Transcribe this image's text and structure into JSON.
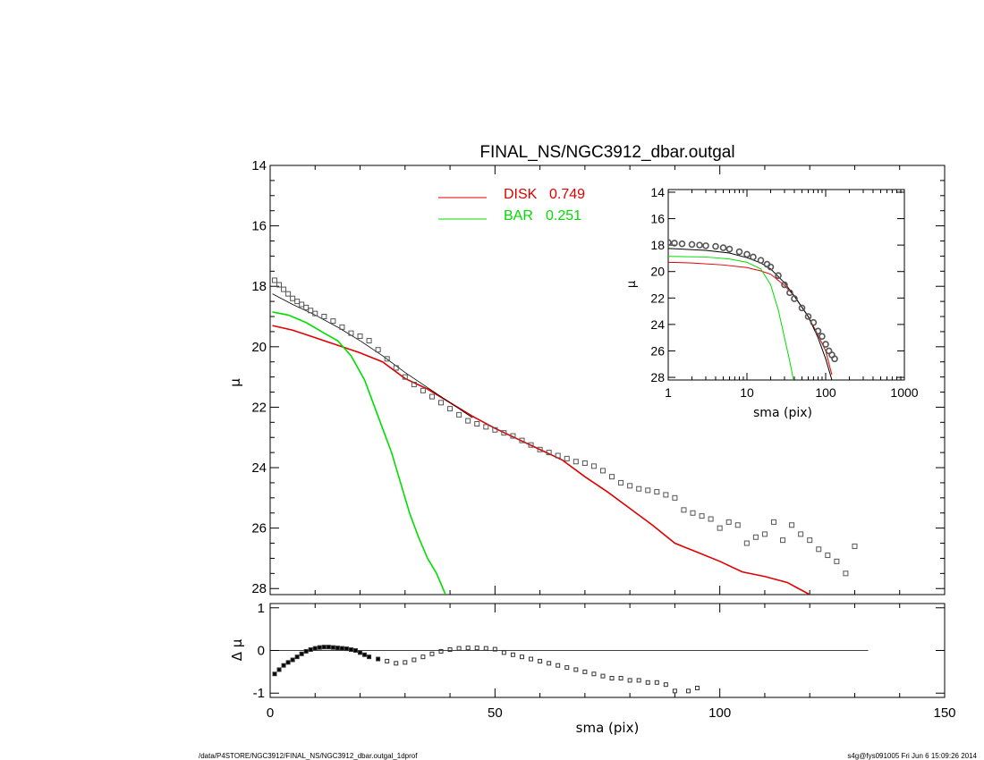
{
  "figure": {
    "title": "FINAL_NS/NGC3912_dbar.outgal",
    "footer_left": "/data/P4STORE/NGC3912/FINAL_NS/NGC3912_dbar.outgal_1dprof",
    "footer_right": "s4g@fys091005  Fri Jun  6 15:09:26 2014"
  },
  "colors": {
    "disk": "#e00000",
    "bar": "#00dd00",
    "model": "#000000",
    "data": "#555555"
  },
  "chart_data": [
    {
      "id": "main",
      "type": "line",
      "title": "FINAL_NS/NGC3912_dbar.outgal",
      "xlabel": "sma (pix)",
      "ylabel": "μ",
      "xlim": [
        0,
        150
      ],
      "ylim": [
        28.2,
        14
      ],
      "yticks": [
        14,
        16,
        18,
        20,
        22,
        24,
        26,
        28
      ],
      "yticklabels": [
        "14",
        "16",
        "18",
        "20",
        "22",
        "24",
        "26",
        "28"
      ],
      "legend": [
        {
          "label": "DISK",
          "value": "0.749",
          "color": "#e00000"
        },
        {
          "label": "BAR",
          "value": "0.251",
          "color": "#00dd00"
        }
      ],
      "series": [
        {
          "name": "DISK",
          "kind": "line",
          "color": "#e00000",
          "x": [
            0.5,
            5,
            10,
            15,
            20,
            25,
            30,
            35,
            40,
            45,
            50,
            55,
            60,
            65,
            70,
            75,
            80,
            85,
            90,
            95,
            100,
            105,
            110,
            115,
            120
          ],
          "y": [
            19.3,
            19.45,
            19.7,
            19.95,
            20.2,
            20.5,
            21.05,
            21.4,
            21.85,
            22.3,
            22.7,
            23.05,
            23.4,
            23.75,
            24.3,
            24.8,
            25.35,
            25.9,
            26.5,
            26.8,
            27.1,
            27.45,
            27.6,
            27.8,
            28.2
          ]
        },
        {
          "name": "BAR",
          "kind": "line",
          "color": "#00dd00",
          "x": [
            0.5,
            4,
            8,
            12,
            15,
            18,
            21,
            24,
            27,
            29,
            31,
            33,
            35,
            37,
            39
          ],
          "y": [
            18.85,
            18.95,
            19.2,
            19.55,
            19.8,
            20.3,
            21.1,
            22.3,
            23.5,
            24.5,
            25.5,
            26.3,
            27.0,
            27.5,
            28.2
          ]
        },
        {
          "name": "Total model",
          "kind": "line",
          "color": "#000000",
          "x": [
            0.5,
            5,
            10,
            15,
            20,
            25,
            30,
            35,
            40,
            45
          ],
          "y": [
            18.25,
            18.6,
            18.95,
            19.35,
            19.8,
            20.3,
            20.85,
            21.35,
            21.85,
            22.35
          ]
        },
        {
          "name": "Data",
          "kind": "scatter",
          "color": "#555555",
          "x": [
            1,
            2,
            3,
            4,
            5,
            6,
            7,
            8,
            9,
            10,
            12,
            14,
            16,
            18,
            20,
            22,
            24,
            26,
            28,
            30,
            32,
            34,
            36,
            38,
            40,
            42,
            44,
            46,
            48,
            50,
            52,
            54,
            56,
            58,
            60,
            62,
            64,
            66,
            68,
            70,
            72,
            74,
            76,
            78,
            80,
            82,
            84,
            86,
            88,
            90,
            92,
            94,
            96,
            98,
            100,
            102,
            104,
            106,
            108,
            110,
            112,
            114,
            116,
            118,
            120,
            122,
            124,
            126,
            128,
            130
          ],
          "y": [
            17.8,
            17.95,
            18.1,
            18.25,
            18.4,
            18.5,
            18.6,
            18.7,
            18.8,
            18.9,
            19.0,
            19.15,
            19.35,
            19.55,
            19.65,
            19.8,
            20.1,
            20.4,
            20.7,
            21.0,
            21.25,
            21.45,
            21.65,
            21.85,
            22.05,
            22.25,
            22.45,
            22.55,
            22.65,
            22.75,
            22.85,
            22.95,
            23.1,
            23.25,
            23.4,
            23.5,
            23.6,
            23.7,
            23.8,
            23.85,
            23.95,
            24.1,
            24.3,
            24.5,
            24.6,
            24.7,
            24.75,
            24.8,
            24.9,
            25.0,
            25.4,
            25.5,
            25.6,
            25.7,
            26.0,
            25.8,
            25.9,
            26.5,
            26.3,
            26.2,
            25.8,
            26.4,
            25.9,
            26.2,
            26.4,
            26.7,
            26.9,
            27.1,
            27.5,
            26.6
          ]
        }
      ]
    },
    {
      "id": "residual",
      "type": "scatter",
      "xlabel": "sma (pix)",
      "ylabel": "Δ μ",
      "xlim": [
        0,
        150
      ],
      "ylim": [
        -1.1,
        1.1
      ],
      "xticks": [
        0,
        50,
        100,
        150
      ],
      "xticklabels": [
        "0",
        "50",
        "100",
        "150"
      ],
      "yticks": [
        -1,
        0,
        1
      ],
      "yticklabels": [
        "-1",
        "0",
        "1"
      ],
      "zero_line_xrange": [
        0,
        133
      ],
      "series": [
        {
          "name": "Residual",
          "color": "#000000",
          "x": [
            1,
            2,
            3,
            4,
            5,
            6,
            7,
            8,
            9,
            10,
            11,
            12,
            13,
            14,
            15,
            16,
            17,
            18,
            19,
            20,
            21,
            22,
            24,
            26,
            28,
            30,
            32,
            34,
            36,
            38,
            40,
            42,
            44,
            46,
            48,
            50,
            52,
            54,
            56,
            58,
            60,
            62,
            64,
            66,
            68,
            70,
            72,
            74,
            76,
            78,
            80,
            82,
            84,
            86,
            88,
            90,
            93,
            95
          ],
          "y": [
            -0.55,
            -0.45,
            -0.35,
            -0.28,
            -0.22,
            -0.15,
            -0.08,
            -0.02,
            0.02,
            0.05,
            0.07,
            0.08,
            0.08,
            0.07,
            0.06,
            0.05,
            0.04,
            0.02,
            0.0,
            -0.05,
            -0.1,
            -0.15,
            -0.2,
            -0.25,
            -0.3,
            -0.28,
            -0.22,
            -0.15,
            -0.08,
            -0.02,
            0.02,
            0.05,
            0.06,
            0.06,
            0.05,
            0.03,
            -0.05,
            -0.1,
            -0.15,
            -0.2,
            -0.25,
            -0.3,
            -0.35,
            -0.4,
            -0.45,
            -0.5,
            -0.55,
            -0.6,
            -0.65,
            -0.65,
            -0.7,
            -0.7,
            -0.75,
            -0.75,
            -0.8,
            -0.95,
            -0.95,
            -0.88
          ]
        }
      ]
    },
    {
      "id": "inset",
      "type": "line",
      "xlabel": "sma (pix)",
      "ylabel": "μ",
      "xscale": "log",
      "xlim": [
        1,
        1000
      ],
      "ylim": [
        28.2,
        13.8
      ],
      "xticks": [
        1,
        10,
        100,
        1000
      ],
      "xticklabels": [
        "1",
        "10",
        "100",
        "1000"
      ],
      "yticks": [
        14,
        16,
        18,
        20,
        22,
        24,
        26,
        28
      ],
      "yticklabels": [
        "14",
        "16",
        "18",
        "20",
        "22",
        "24",
        "26",
        "28"
      ],
      "series": [
        {
          "name": "DISK",
          "kind": "line",
          "color": "#e00000",
          "x": [
            1,
            2,
            5,
            10,
            15,
            20,
            30,
            40,
            60,
            80,
            100,
            120
          ],
          "y": [
            19.3,
            19.35,
            19.5,
            19.7,
            19.95,
            20.2,
            21.05,
            21.85,
            23.4,
            24.8,
            26.0,
            27.8
          ]
        },
        {
          "name": "BAR",
          "kind": "line",
          "color": "#00dd00",
          "x": [
            1,
            3,
            6,
            10,
            15,
            20,
            25,
            30,
            35,
            39
          ],
          "y": [
            18.85,
            18.9,
            19.05,
            19.3,
            19.8,
            21.0,
            22.9,
            25.0,
            26.8,
            28.2
          ]
        },
        {
          "name": "Total model",
          "kind": "line",
          "color": "#000000",
          "x": [
            1,
            3,
            6,
            10,
            15,
            20,
            30,
            40,
            60,
            80,
            100,
            120
          ],
          "y": [
            18.25,
            18.4,
            18.6,
            18.95,
            19.35,
            19.8,
            20.85,
            21.85,
            23.4,
            25.0,
            26.6,
            28.2
          ]
        },
        {
          "name": "Data",
          "kind": "scatter",
          "color": "#555555",
          "x": [
            1,
            1.2,
            1.5,
            2,
            2.5,
            3,
            4,
            5,
            6,
            8,
            10,
            12,
            15,
            18,
            20,
            25,
            30,
            35,
            40,
            50,
            60,
            70,
            80,
            90,
            100,
            110,
            120,
            130
          ],
          "y": [
            17.8,
            17.85,
            17.9,
            17.95,
            18.0,
            18.05,
            18.1,
            18.2,
            18.3,
            18.5,
            18.7,
            18.9,
            19.15,
            19.45,
            19.65,
            20.3,
            21.0,
            21.6,
            22.05,
            22.75,
            23.4,
            23.85,
            24.5,
            24.9,
            25.5,
            26.0,
            26.3,
            26.6
          ]
        }
      ]
    }
  ]
}
